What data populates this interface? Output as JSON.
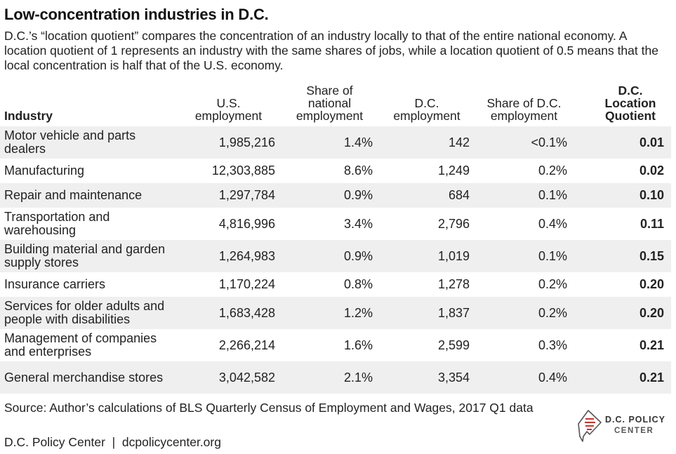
{
  "title": "Low-concentration industries in D.C.",
  "subtitle": "D.C.’s “location quotient” compares the concentration of an industry locally to that of the entire national economy. A location quotient of 1 represents an industry with the same shares of jobs, while a location quotient of 0.5 means that the local concentration is half that of the U.S. economy.",
  "chart_data": {
    "type": "table",
    "columns": [
      "Industry",
      "U.S. employment",
      "Share of national employment",
      "D.C. employment",
      "Share of D.C. employment",
      "D.C. Location Quotient"
    ],
    "rows": [
      {
        "industry": "Motor vehicle and parts dealers",
        "us_employment": "1,985,216",
        "us_share": "1.4%",
        "dc_employment": "142",
        "dc_share": "<0.1%",
        "lq": "0.01"
      },
      {
        "industry": "Manufacturing",
        "us_employment": "12,303,885",
        "us_share": "8.6%",
        "dc_employment": "1,249",
        "dc_share": "0.2%",
        "lq": "0.02"
      },
      {
        "industry": "Repair and maintenance",
        "us_employment": "1,297,784",
        "us_share": "0.9%",
        "dc_employment": "684",
        "dc_share": "0.1%",
        "lq": "0.10"
      },
      {
        "industry": "Transportation and warehousing",
        "us_employment": "4,816,996",
        "us_share": "3.4%",
        "dc_employment": "2,796",
        "dc_share": "0.4%",
        "lq": "0.11"
      },
      {
        "industry": "Building material and garden supply stores",
        "us_employment": "1,264,983",
        "us_share": "0.9%",
        "dc_employment": "1,019",
        "dc_share": "0.1%",
        "lq": "0.15"
      },
      {
        "industry": "Insurance carriers",
        "us_employment": "1,170,224",
        "us_share": "0.8%",
        "dc_employment": "1,278",
        "dc_share": "0.2%",
        "lq": "0.20"
      },
      {
        "industry": "Services for older adults and people with disabilities",
        "us_employment": "1,683,428",
        "us_share": "1.2%",
        "dc_employment": "1,837",
        "dc_share": "0.2%",
        "lq": "0.20"
      },
      {
        "industry": "Management of companies and enterprises",
        "us_employment": "2,266,214",
        "us_share": "1.6%",
        "dc_employment": "2,599",
        "dc_share": "0.3%",
        "lq": "0.21"
      },
      {
        "industry": "General merchandise stores",
        "us_employment": "3,042,582",
        "us_share": "2.1%",
        "dc_employment": "3,354",
        "dc_share": "0.4%",
        "lq": "0.21"
      }
    ]
  },
  "source": "Source: Author’s calculations of BLS Quarterly Census of Employment and Wages, 2017 Q1 data",
  "footer": "D.C. Policy Center  |  dcpolicycenter.org",
  "logo": {
    "line1": "D.C. POLICY",
    "line2": "CENTER",
    "icon": "dc-map-document-icon",
    "accent": "#c8322f"
  },
  "colors": {
    "row_shade": "#efefef",
    "text": "#222222"
  }
}
